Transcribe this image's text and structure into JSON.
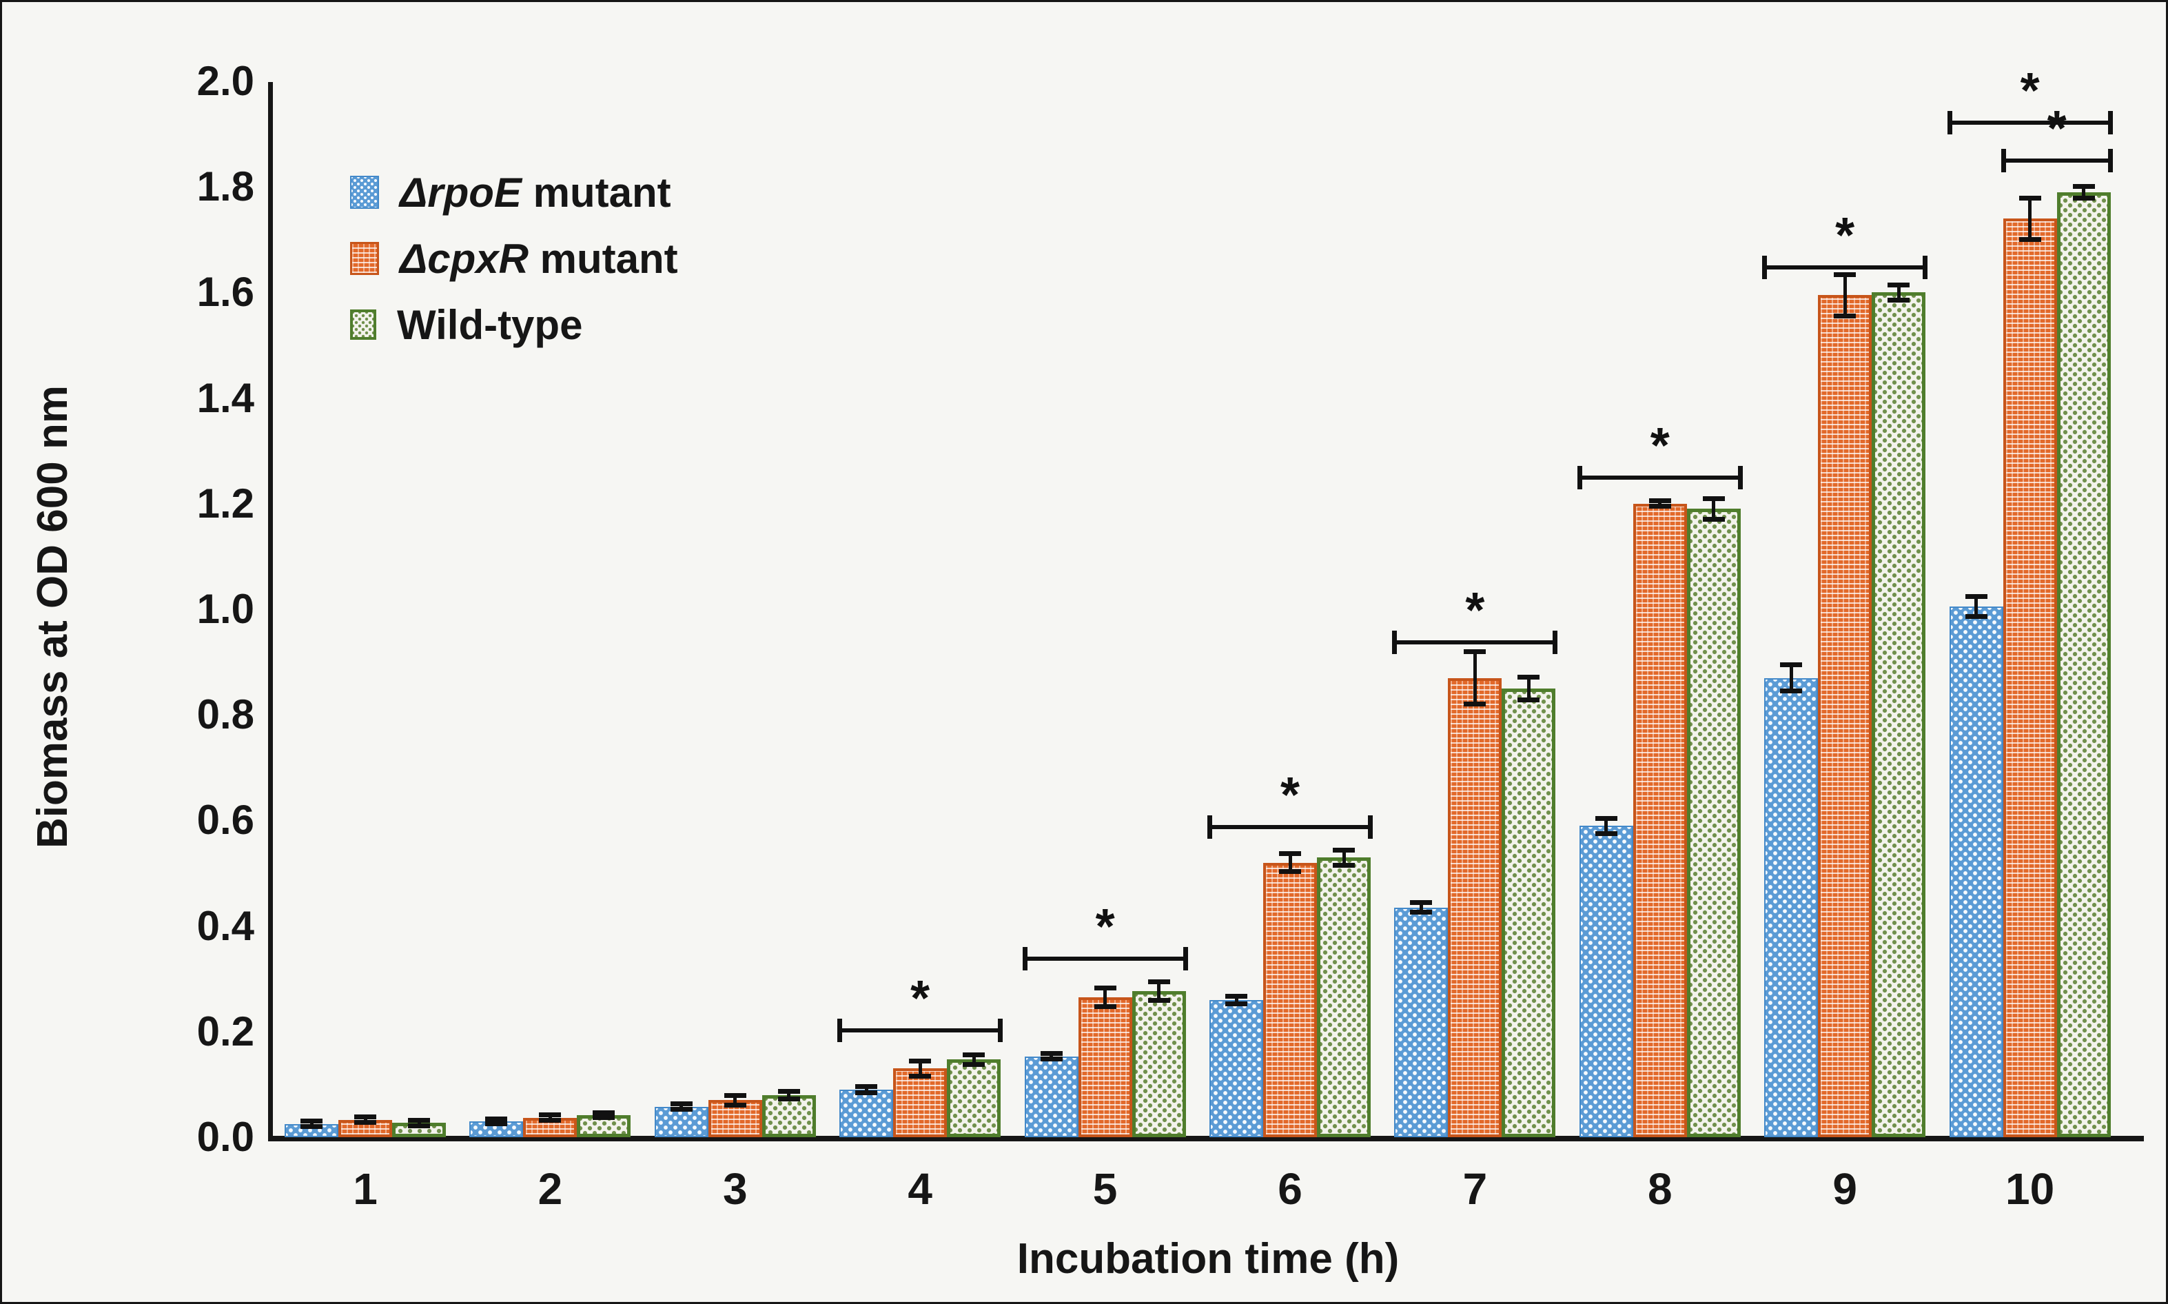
{
  "figure": {
    "background": "#f6f6f3",
    "frame_color": "#161616"
  },
  "chart_data": {
    "type": "bar",
    "title": "",
    "xlabel": "Incubation time (h)",
    "ylabel": "Biomass at OD 600 nm",
    "categories": [
      "1",
      "2",
      "3",
      "4",
      "5",
      "6",
      "7",
      "8",
      "9",
      "10"
    ],
    "ylim": [
      0.0,
      2.0
    ],
    "ytick_labels": [
      "0.0",
      "0.2",
      "0.4",
      "0.6",
      "0.8",
      "1.0",
      "1.2",
      "1.4",
      "1.6",
      "1.8",
      "2.0"
    ],
    "grid": false,
    "legend_position": "top-left-inside",
    "series": [
      {
        "name": "ΔrpoE mutant",
        "legend_italic": "ΔrpoE",
        "legend_rest": " mutant",
        "fill_color": "#5b9bd5",
        "border_color": "#4389c9",
        "pattern": "white-dot-weave-on-blue",
        "values": [
          0.025,
          0.03,
          0.058,
          0.09,
          0.153,
          0.26,
          0.435,
          0.59,
          0.87,
          1.005
        ],
        "errors": [
          0.006,
          0.005,
          0.006,
          0.006,
          0.006,
          0.008,
          0.01,
          0.015,
          0.025,
          0.02
        ]
      },
      {
        "name": "ΔcpxR mutant",
        "legend_italic": "ΔcpxR",
        "legend_rest": " mutant",
        "fill_color": "#e2692a",
        "border_color": "#c7551a",
        "pattern": "white-dash-grid-on-orange",
        "values": [
          0.033,
          0.037,
          0.07,
          0.13,
          0.265,
          0.52,
          0.87,
          1.2,
          1.595,
          1.74
        ],
        "errors": [
          0.006,
          0.006,
          0.01,
          0.015,
          0.018,
          0.018,
          0.05,
          0.006,
          0.04,
          0.04
        ]
      },
      {
        "name": "Wild-type",
        "legend_italic": "",
        "legend_rest": "Wild-type",
        "fill_color": "#f3f3ec",
        "dot_color": "#70904c",
        "border_color": "#4f7d2c",
        "pattern": "green-dot-check-on-white",
        "values": [
          0.027,
          0.042,
          0.08,
          0.147,
          0.277,
          0.53,
          0.85,
          1.19,
          1.6,
          1.79
        ],
        "errors": [
          0.006,
          0.005,
          0.008,
          0.01,
          0.018,
          0.015,
          0.022,
          0.02,
          0.015,
          0.012
        ]
      }
    ],
    "significance": [
      {
        "group": 4,
        "label": "*",
        "from_series": 0,
        "to_series": 2,
        "y": 0.202
      },
      {
        "group": 5,
        "label": "*",
        "from_series": 0,
        "to_series": 2,
        "y": 0.338
      },
      {
        "group": 6,
        "label": "*",
        "from_series": 0,
        "to_series": 2,
        "y": 0.587
      },
      {
        "group": 7,
        "label": "*",
        "from_series": 0,
        "to_series": 2,
        "y": 0.937
      },
      {
        "group": 8,
        "label": "*",
        "from_series": 0,
        "to_series": 2,
        "y": 1.249
      },
      {
        "group": 9,
        "label": "*",
        "from_series": 0,
        "to_series": 2,
        "y": 1.647
      },
      {
        "group": 10,
        "label": "*",
        "from_series": 0,
        "to_series": 2,
        "y": 1.922
      },
      {
        "group": 10,
        "label": "*",
        "from_series": 1,
        "to_series": 2,
        "y": 1.85
      }
    ]
  }
}
